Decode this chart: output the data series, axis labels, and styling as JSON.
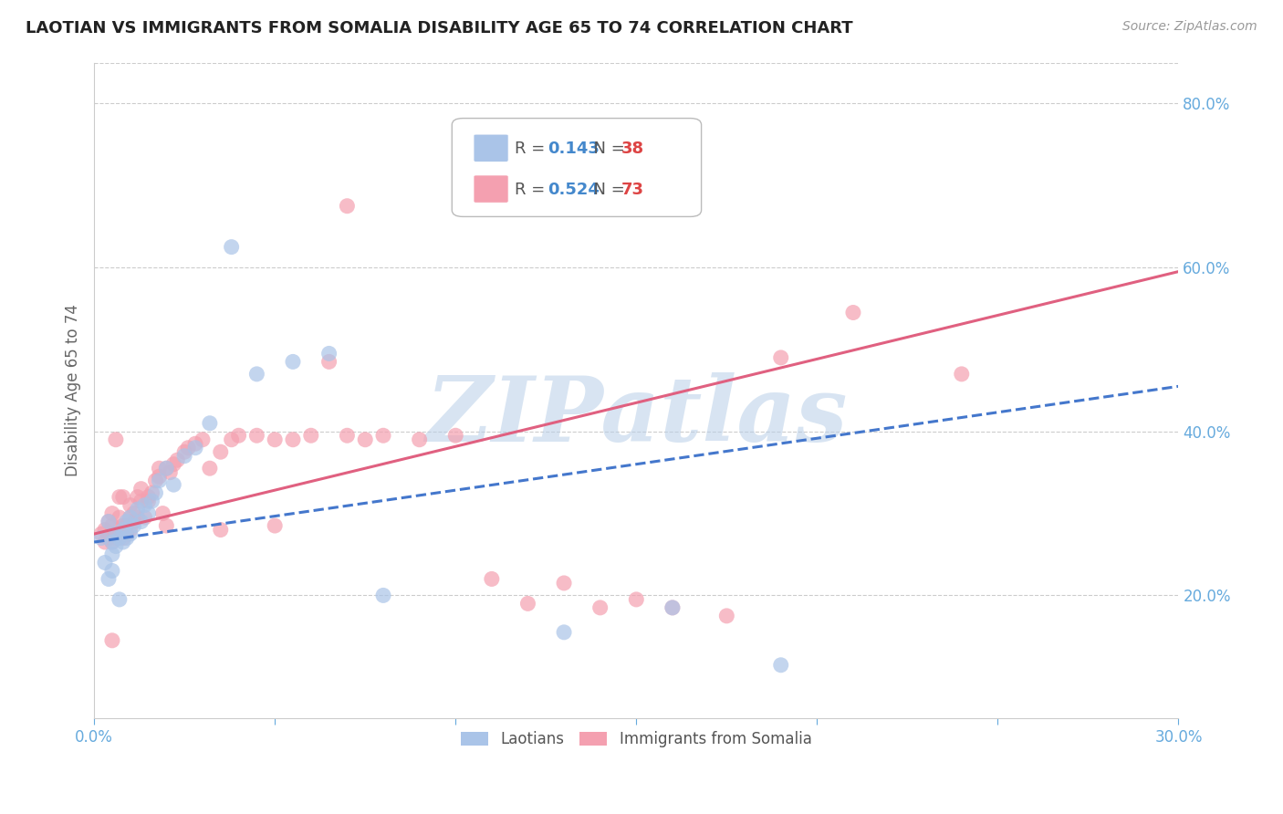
{
  "title": "LAOTIAN VS IMMIGRANTS FROM SOMALIA DISABILITY AGE 65 TO 74 CORRELATION CHART",
  "source": "Source: ZipAtlas.com",
  "ylabel": "Disability Age 65 to 74",
  "xlim": [
    0.0,
    0.3
  ],
  "ylim": [
    0.05,
    0.85
  ],
  "xticks": [
    0.0,
    0.05,
    0.1,
    0.15,
    0.2,
    0.25,
    0.3
  ],
  "xticklabels": [
    "0.0%",
    "",
    "",
    "",
    "",
    "",
    "30.0%"
  ],
  "yticks_right": [
    0.2,
    0.4,
    0.6,
    0.8
  ],
  "ytick_labels_right": [
    "20.0%",
    "40.0%",
    "60.0%",
    "80.0%"
  ],
  "grid_color": "#cccccc",
  "background_color": "#ffffff",
  "watermark": "ZIPatlas",
  "watermark_color": "#b8cfe8",
  "legend_R1": "0.143",
  "legend_N1": "38",
  "legend_R2": "0.524",
  "legend_N2": "73",
  "laotian_color": "#aac4e8",
  "somalia_color": "#f4a0b0",
  "laotian_trend_color": "#4477cc",
  "somalia_trend_color": "#e06080",
  "title_color": "#222222",
  "source_color": "#999999",
  "axis_color": "#66aadd",
  "ylabel_color": "#666666",
  "laotian_points_x": [
    0.002,
    0.003,
    0.004,
    0.004,
    0.005,
    0.005,
    0.005,
    0.006,
    0.006,
    0.007,
    0.007,
    0.008,
    0.008,
    0.009,
    0.009,
    0.01,
    0.01,
    0.011,
    0.012,
    0.013,
    0.014,
    0.015,
    0.016,
    0.017,
    0.018,
    0.02,
    0.022,
    0.025,
    0.028,
    0.032,
    0.038,
    0.045,
    0.055,
    0.065,
    0.08,
    0.13,
    0.16,
    0.19
  ],
  "laotian_points_y": [
    0.27,
    0.24,
    0.29,
    0.22,
    0.265,
    0.25,
    0.23,
    0.275,
    0.26,
    0.27,
    0.195,
    0.28,
    0.265,
    0.29,
    0.27,
    0.295,
    0.275,
    0.285,
    0.305,
    0.29,
    0.31,
    0.3,
    0.315,
    0.325,
    0.34,
    0.355,
    0.335,
    0.37,
    0.38,
    0.41,
    0.625,
    0.47,
    0.485,
    0.495,
    0.2,
    0.155,
    0.185,
    0.115
  ],
  "somalia_points_x": [
    0.002,
    0.003,
    0.003,
    0.004,
    0.004,
    0.005,
    0.005,
    0.005,
    0.006,
    0.006,
    0.006,
    0.007,
    0.007,
    0.007,
    0.008,
    0.008,
    0.008,
    0.009,
    0.009,
    0.01,
    0.01,
    0.01,
    0.011,
    0.011,
    0.012,
    0.012,
    0.013,
    0.013,
    0.014,
    0.015,
    0.015,
    0.016,
    0.017,
    0.018,
    0.018,
    0.019,
    0.02,
    0.021,
    0.022,
    0.023,
    0.025,
    0.026,
    0.028,
    0.03,
    0.032,
    0.035,
    0.038,
    0.04,
    0.045,
    0.05,
    0.055,
    0.06,
    0.065,
    0.07,
    0.075,
    0.08,
    0.09,
    0.1,
    0.11,
    0.12,
    0.13,
    0.14,
    0.15,
    0.16,
    0.175,
    0.19,
    0.21,
    0.24,
    0.005,
    0.02,
    0.035,
    0.05,
    0.07
  ],
  "somalia_points_y": [
    0.275,
    0.28,
    0.265,
    0.29,
    0.27,
    0.285,
    0.265,
    0.3,
    0.27,
    0.275,
    0.39,
    0.295,
    0.275,
    0.32,
    0.285,
    0.27,
    0.32,
    0.275,
    0.285,
    0.295,
    0.28,
    0.31,
    0.3,
    0.29,
    0.295,
    0.32,
    0.315,
    0.33,
    0.295,
    0.315,
    0.32,
    0.325,
    0.34,
    0.345,
    0.355,
    0.3,
    0.355,
    0.35,
    0.36,
    0.365,
    0.375,
    0.38,
    0.385,
    0.39,
    0.355,
    0.375,
    0.39,
    0.395,
    0.395,
    0.39,
    0.39,
    0.395,
    0.485,
    0.395,
    0.39,
    0.395,
    0.39,
    0.395,
    0.22,
    0.19,
    0.215,
    0.185,
    0.195,
    0.185,
    0.175,
    0.49,
    0.545,
    0.47,
    0.145,
    0.285,
    0.28,
    0.285,
    0.675
  ],
  "lao_trend_x": [
    0.0,
    0.3
  ],
  "lao_trend_y": [
    0.265,
    0.455
  ],
  "som_trend_x": [
    0.0,
    0.3
  ],
  "som_trend_y": [
    0.275,
    0.595
  ]
}
